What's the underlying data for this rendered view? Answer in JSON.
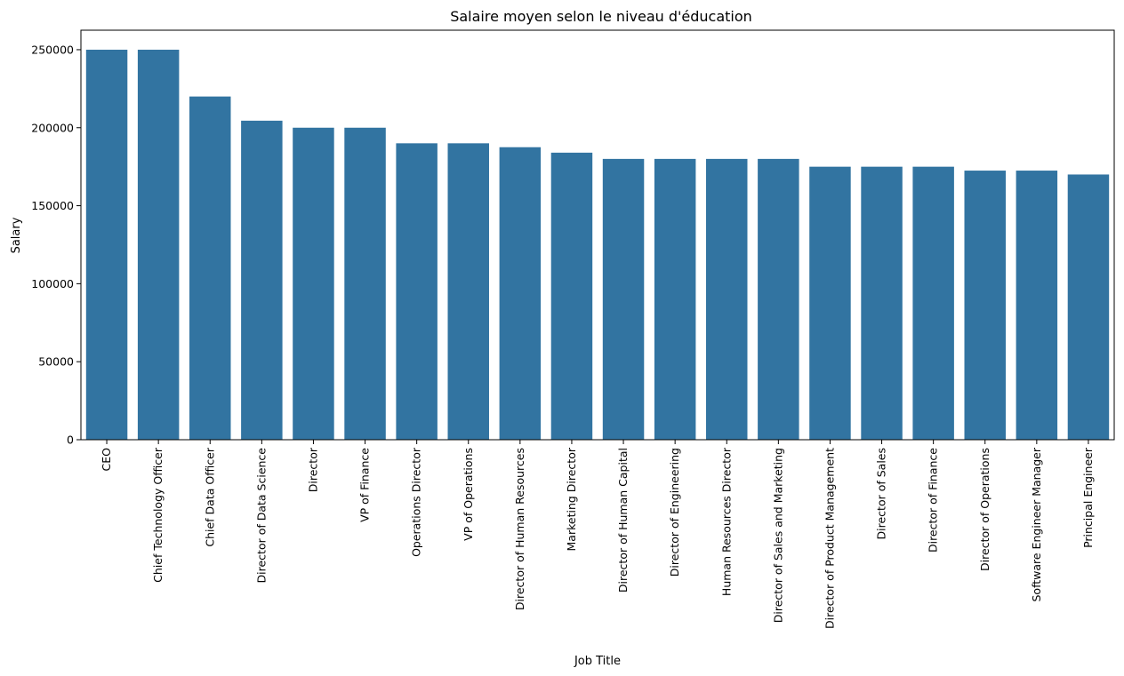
{
  "chart_data": {
    "type": "bar",
    "title": "Salaire moyen selon le niveau d'éducation",
    "xlabel": "Job Title",
    "ylabel": "Salary",
    "ylim": [
      0,
      262500
    ],
    "yticks": [
      0,
      50000,
      100000,
      150000,
      200000,
      250000
    ],
    "grid": false,
    "bar_color": "#3274a1",
    "categories": [
      "CEO",
      "Chief Technology Officer",
      "Chief Data Officer",
      "Director of Data Science",
      "Director",
      "VP of Finance",
      "Operations Director",
      "VP of Operations",
      "Director of Human Resources",
      "Marketing Director",
      "Director of Human Capital",
      "Director of Engineering",
      "Human Resources Director",
      "Director of Sales and Marketing",
      "Director of Product Management",
      "Director of Sales",
      "Director of Finance",
      "Director of Operations",
      "Software Engineer Manager",
      "Principal Engineer"
    ],
    "values": [
      250000,
      250000,
      220000,
      204500,
      200000,
      200000,
      190000,
      190000,
      187500,
      184000,
      180000,
      180000,
      180000,
      180000,
      175000,
      175000,
      175000,
      172500,
      172500,
      170000
    ]
  }
}
